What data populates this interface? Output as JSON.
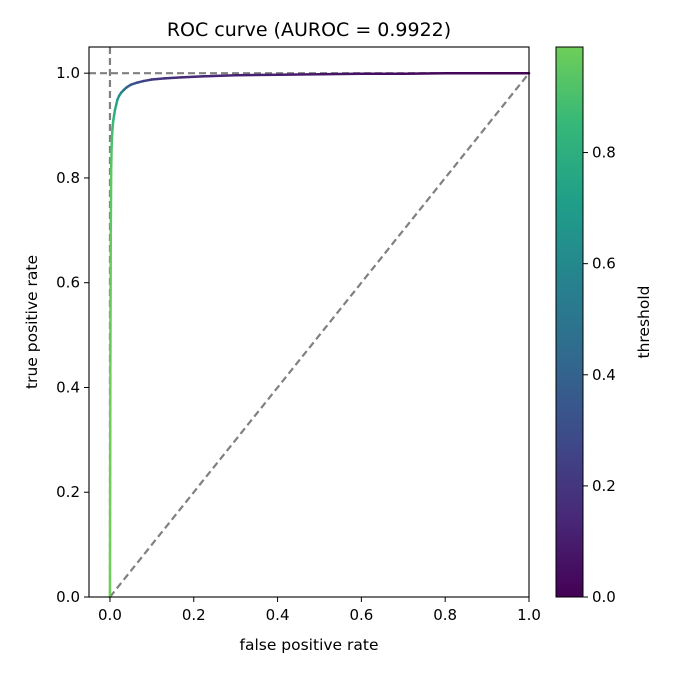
{
  "chart_data": {
    "type": "line",
    "title": "ROC curve (AUROC = 0.9922)",
    "xlabel": "false positive rate",
    "ylabel": "true positive rate",
    "xlim": [
      -0.05,
      1.0
    ],
    "ylim": [
      0.0,
      1.05
    ],
    "x_ticks": [
      0.0,
      0.2,
      0.4,
      0.6,
      0.8,
      1.0
    ],
    "x_tick_labels": [
      "0.0",
      "0.2",
      "0.4",
      "0.6",
      "0.8",
      "1.0"
    ],
    "y_ticks": [
      0.0,
      0.2,
      0.4,
      0.6,
      0.8,
      1.0
    ],
    "y_tick_labels": [
      "0.0",
      "0.2",
      "0.4",
      "0.6",
      "0.8",
      "1.0"
    ],
    "grid": false,
    "series": [
      {
        "x": [
          0.0,
          0.001,
          0.002,
          0.003,
          0.004,
          0.005,
          0.006,
          0.008,
          0.01,
          0.012,
          0.015,
          0.018,
          0.022,
          0.027,
          0.033,
          0.04,
          0.05,
          0.065,
          0.08,
          0.1,
          0.13,
          0.17,
          0.22,
          0.3,
          0.4,
          0.5,
          0.6,
          0.7,
          0.8,
          0.9,
          1.0
        ],
        "y": [
          0.0,
          0.45,
          0.7,
          0.82,
          0.86,
          0.88,
          0.895,
          0.91,
          0.92,
          0.93,
          0.94,
          0.95,
          0.957,
          0.963,
          0.968,
          0.973,
          0.978,
          0.982,
          0.985,
          0.988,
          0.99,
          0.992,
          0.994,
          0.996,
          0.997,
          0.998,
          0.999,
          0.999,
          1.0,
          1.0,
          1.0
        ],
        "threshold": [
          1.0,
          0.98,
          0.96,
          0.94,
          0.92,
          0.9,
          0.88,
          0.85,
          0.82,
          0.79,
          0.76,
          0.72,
          0.67,
          0.6,
          0.52,
          0.44,
          0.36,
          0.3,
          0.26,
          0.22,
          0.19,
          0.16,
          0.14,
          0.12,
          0.1,
          0.08,
          0.06,
          0.04,
          0.02,
          0.01,
          0.0
        ]
      }
    ],
    "reference_lines": [
      {
        "kind": "diagonal",
        "from": [
          0.0,
          0.0
        ],
        "to": [
          1.0,
          1.0
        ],
        "style": "dashed",
        "color": "#808080"
      },
      {
        "kind": "vertical",
        "x": 0.0,
        "style": "dashed",
        "color": "#808080"
      },
      {
        "kind": "horizontal",
        "y": 1.0,
        "style": "dashed",
        "color": "#808080"
      }
    ],
    "colorbar": {
      "label": "threshold",
      "colormap": "viridis",
      "range": [
        0.0,
        0.99
      ],
      "ticks": [
        0.0,
        0.2,
        0.4,
        0.6,
        0.8
      ],
      "tick_labels": [
        "0.0",
        "0.2",
        "0.4",
        "0.6",
        "0.8"
      ],
      "colors": [
        "#440154",
        "#482878",
        "#3e4a89",
        "#31688e",
        "#26828e",
        "#1f9e89",
        "#35b779",
        "#6ece58"
      ]
    }
  }
}
